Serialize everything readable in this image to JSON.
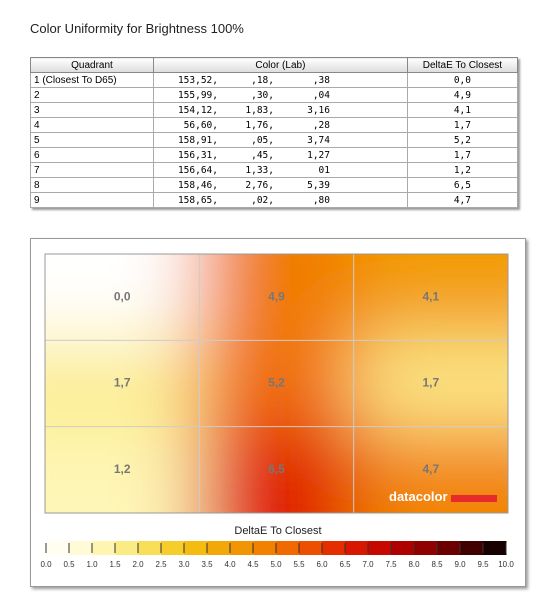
{
  "title": "Color Uniformity for Brightness 100%",
  "table": {
    "headers": [
      "Quadrant",
      "Color (Lab)",
      "DeltaE To Closest"
    ],
    "rows": [
      [
        "1 (Closest To D65)",
        [
          "153,52,",
          ",18,",
          ",38"
        ],
        "0,0"
      ],
      [
        "2",
        [
          "155,99,",
          ",30,",
          ",04"
        ],
        "4,9"
      ],
      [
        "3",
        [
          "154,12,",
          "1,83,",
          "3,16"
        ],
        "4,1"
      ],
      [
        "4",
        [
          "56,60,",
          "1,76,",
          ",28"
        ],
        "1,7"
      ],
      [
        "5",
        [
          "158,91,",
          ",05,",
          "3,74"
        ],
        "5,2"
      ],
      [
        "6",
        [
          "156,31,",
          ",45,",
          "1,27"
        ],
        "1,7"
      ],
      [
        "7",
        [
          "156,64,",
          "1,33,",
          "01"
        ],
        "1,2"
      ],
      [
        "8",
        [
          "158,46,",
          "2,76,",
          "5,39"
        ],
        "6,5"
      ],
      [
        "9",
        [
          "158,65,",
          ",02,",
          ",80"
        ],
        "4,7"
      ]
    ]
  },
  "heatmap": {
    "values": [
      0.0,
      4.9,
      4.1,
      1.7,
      5.2,
      1.7,
      1.2,
      6.5,
      4.7
    ],
    "value_labels": [
      "0,0",
      "4,9",
      "4,1",
      "1,7",
      "5,2",
      "1,7",
      "1,2",
      "6,5",
      "4,7"
    ],
    "logo": "datacolor",
    "legend_title": "DeltaE To Closest",
    "scale_ticks": [
      {
        "value": 0,
        "label": "0.0"
      },
      0.5,
      {
        "value": 1,
        "label": "1.0"
      },
      1.5,
      {
        "value": 2,
        "label": "2.0"
      },
      2.5,
      {
        "value": 3,
        "label": "3.0"
      },
      3.5,
      {
        "value": 4,
        "label": "4.0"
      },
      4.5,
      {
        "value": 5,
        "label": "5.0"
      },
      5.5,
      {
        "value": 6,
        "label": "6.0"
      },
      6.5,
      {
        "value": 7,
        "label": "7.0"
      },
      7.5,
      {
        "value": 8,
        "label": "8.0"
      },
      8.5,
      {
        "value": 9,
        "label": "9.0"
      },
      9.5,
      {
        "value": 10,
        "label": "10.0"
      }
    ]
  }
}
